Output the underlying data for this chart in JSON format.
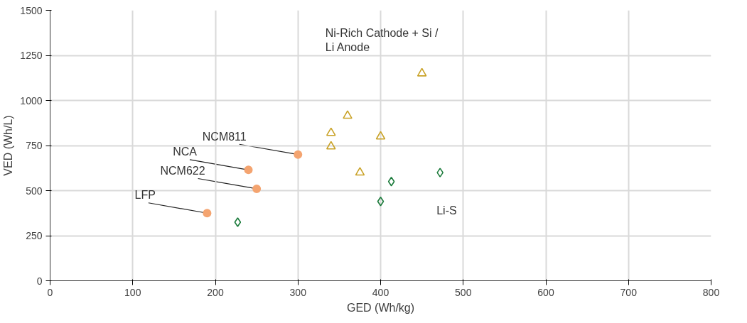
{
  "chart_data": {
    "type": "scatter",
    "xlabel": "GED (Wh/kg)",
    "ylabel": "VED (Wh/L)",
    "xlim": [
      0,
      800
    ],
    "xticks": [
      0,
      100,
      200,
      300,
      400,
      500,
      600,
      700,
      800
    ],
    "ylim": [
      0,
      1500
    ],
    "yticks": [
      0,
      250,
      500,
      750,
      1000,
      1250,
      1500
    ],
    "grid": true,
    "series": [
      {
        "color": "#f4a470",
        "marker": "circle",
        "x": [
          190,
          240,
          250,
          300
        ],
        "values": [
          375,
          615,
          510,
          700
        ]
      },
      {
        "name": "Ni-Rich Cathode + Si / Li Anode",
        "color": "#c9a227",
        "marker": "triangle",
        "x": [
          340,
          340,
          360,
          375,
          400,
          450
        ],
        "values": [
          820,
          745,
          915,
          600,
          800,
          1150
        ]
      },
      {
        "name": "Li-S",
        "color": "#1a7a3a",
        "marker": "diamond",
        "x": [
          227,
          400,
          413,
          472
        ],
        "values": [
          325,
          440,
          550,
          600
        ]
      }
    ],
    "annotations": [
      {
        "text": "LFP",
        "x": 190,
        "y": 375
      },
      {
        "text": "NCM622",
        "x": 250,
        "y": 510
      },
      {
        "text": "NCA",
        "x": 240,
        "y": 615
      },
      {
        "text": "NCM811",
        "x": 300,
        "y": 700
      }
    ]
  }
}
